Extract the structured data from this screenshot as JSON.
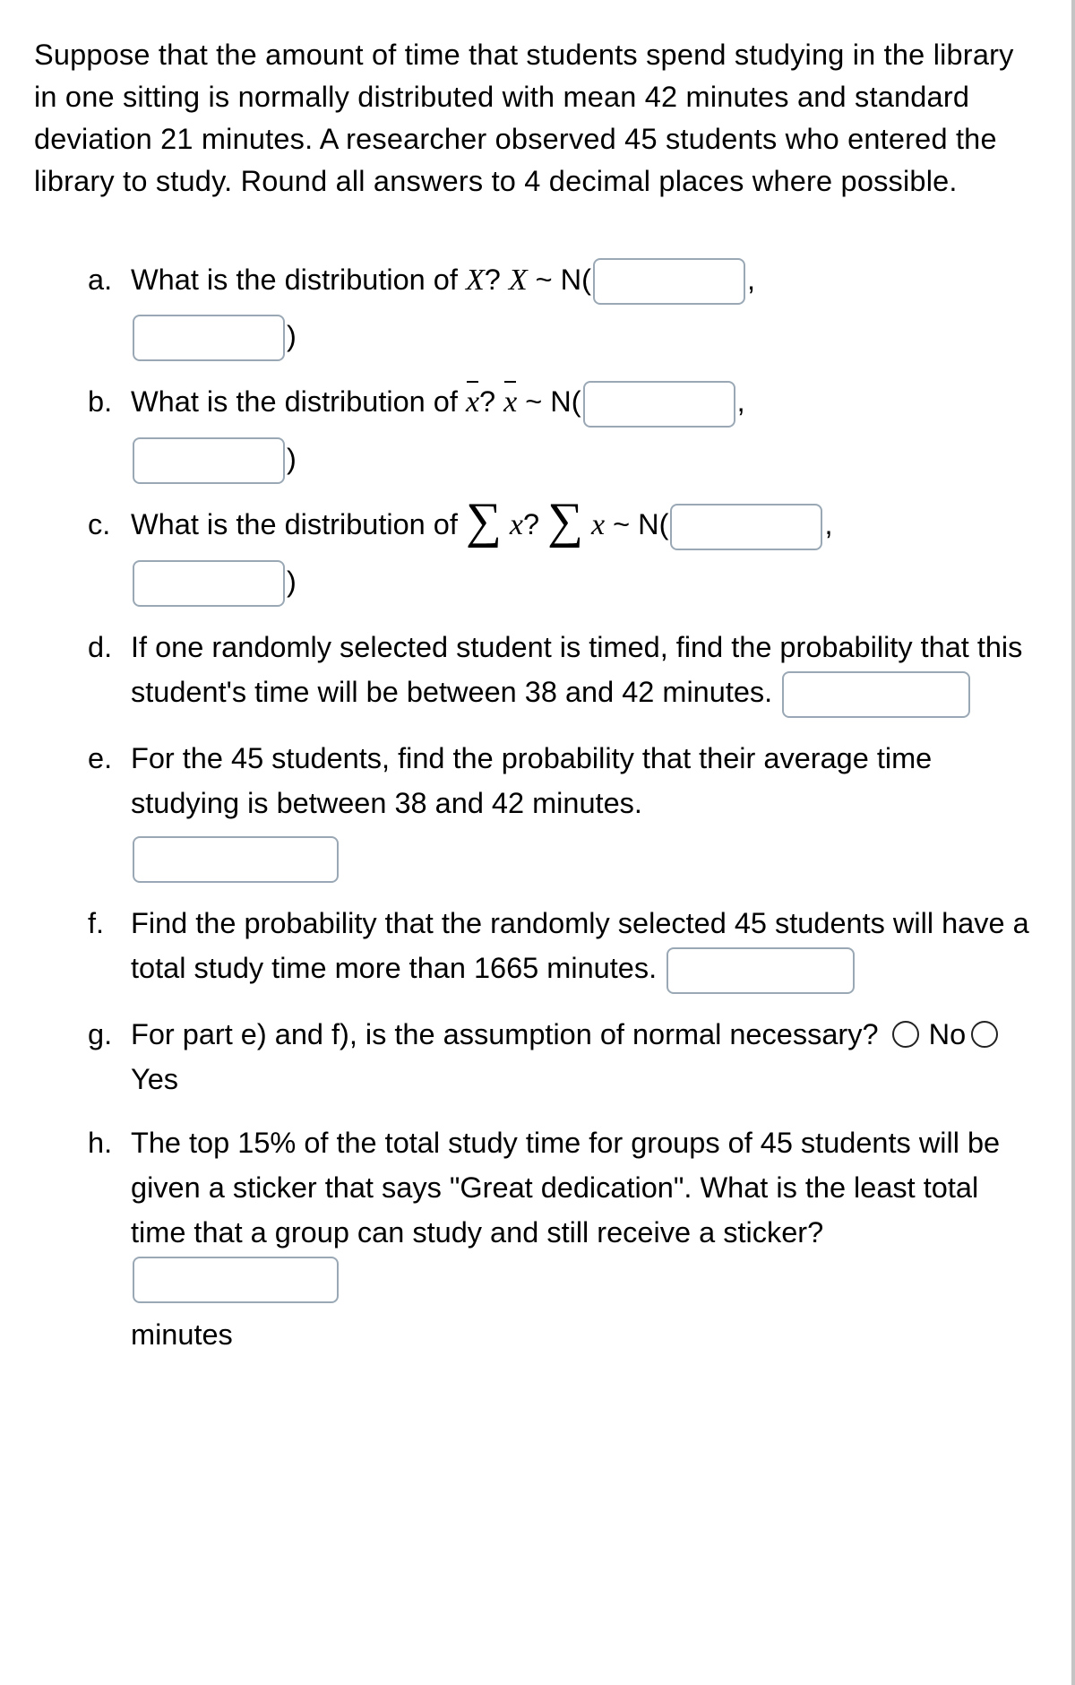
{
  "intro": "Suppose that the amount of time that students spend studying in the library in one sitting is normally distributed with mean 42 minutes and standard deviation 21 minutes. A researcher observed 45 students who entered the library to study. Round all answers to 4 decimal places where possible.",
  "questions": {
    "a": {
      "marker": "a.",
      "pre": "What is the distribution of ",
      "var1_it": "X",
      "qmark": "? ",
      "var2_it": "X",
      "tilde": " ~ N(",
      "comma": ",",
      "close": ")"
    },
    "b": {
      "marker": "b.",
      "pre": "What is the distribution of ",
      "var_it": "x",
      "qmark": "? ",
      "var2_it": "x",
      "tilde": " ~ N(",
      "comma": ",",
      "close": ")"
    },
    "c": {
      "marker": "c.",
      "pre": "What is the distribution of ",
      "sigma": "∑",
      "var_it": "x",
      "qmark": "? ",
      "sigma2": "∑",
      "var2_it": "x",
      "tilde": " ~ N(",
      "comma": ",",
      "close": ")"
    },
    "d": {
      "marker": "d.",
      "text1": "If one randomly selected student is timed, find the probability that this student's time will be between 38 and 42 minutes. "
    },
    "e": {
      "marker": "e.",
      "text": "For the 45 students, find the probability that their average time studying is between 38 and 42 minutes."
    },
    "f": {
      "marker": "f.",
      "text1": "Find the probability that the randomly selected 45 students will have a total study time more than 1665 minutes. "
    },
    "g": {
      "marker": "g.",
      "text": "For part e) and f), is the assumption of normal necessary? ",
      "no": "No",
      "yes": "Yes"
    },
    "h": {
      "marker": "h.",
      "text1": "The top 15% of the total study time for groups of 45 students will be given a sticker that says \"Great dedication\". What is the least total time that a group can study and still receive a sticker? ",
      "unit": "minutes"
    }
  }
}
